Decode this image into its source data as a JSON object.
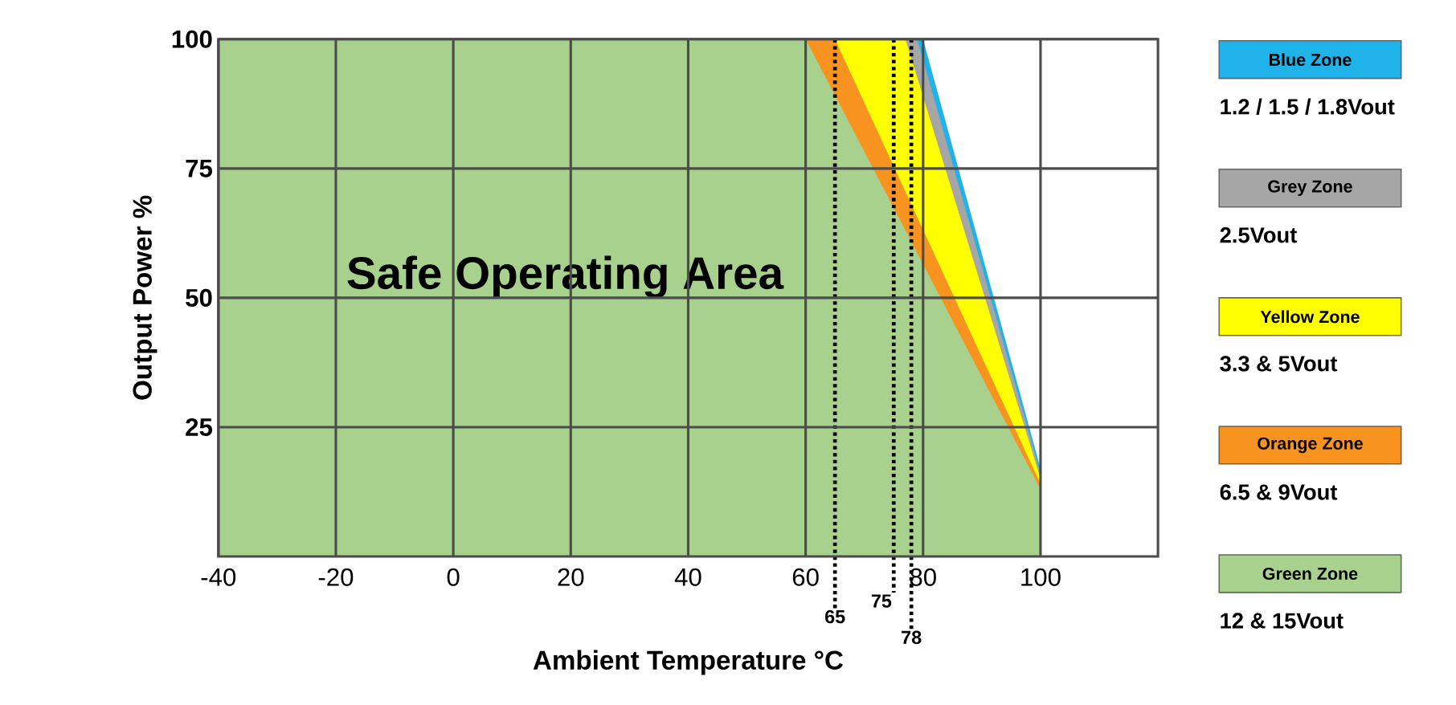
{
  "chart_data": {
    "type": "area",
    "xlabel": "Ambient Temperature °C",
    "ylabel": "Output Power %",
    "xlim": [
      -40,
      120
    ],
    "ylim": [
      0,
      100
    ],
    "xticks": [
      -40,
      -20,
      0,
      20,
      40,
      60,
      80,
      100
    ],
    "yticks": [
      25,
      50,
      75,
      100
    ],
    "grid": true,
    "legend": "right",
    "series": [
      {
        "name": "Blue Zone",
        "color": "#1fb3ea",
        "x": [
          79,
          80,
          100
        ],
        "values": [
          100,
          100,
          17
        ]
      },
      {
        "name": "Grey Zone",
        "color": "#a6a6a6",
        "x": [
          77,
          79,
          100
        ],
        "values": [
          100,
          100,
          16
        ]
      },
      {
        "name": "Yellow Zone",
        "color": "#ffff00",
        "x": [
          65,
          77,
          100
        ],
        "values": [
          100,
          100,
          15
        ]
      },
      {
        "name": "Orange Zone",
        "color": "#f7931e",
        "x": [
          60,
          65,
          100
        ],
        "values": [
          100,
          100,
          14
        ]
      },
      {
        "name": "Green Zone",
        "color": "#a9d18e",
        "x": [
          -40,
          60,
          100
        ],
        "values": [
          100,
          100,
          13
        ]
      }
    ],
    "ref_lines": [
      {
        "axis": "x",
        "value": 65,
        "label": "65",
        "color": "#000000",
        "line_style": "dotted"
      },
      {
        "axis": "x",
        "value": 75,
        "label": "75",
        "color": "#000000",
        "line_style": "dotted"
      },
      {
        "axis": "x",
        "value": 78,
        "label": "78",
        "color": "#000000",
        "line_style": "dotted"
      }
    ],
    "annotations": [
      "Safe Operating Area",
      "1.2 / 1.5 / 1.8Vout",
      "2.5Vout",
      "3.3 & 5Vout",
      "6.5 & 9Vout",
      "12 & 15Vout"
    ]
  }
}
